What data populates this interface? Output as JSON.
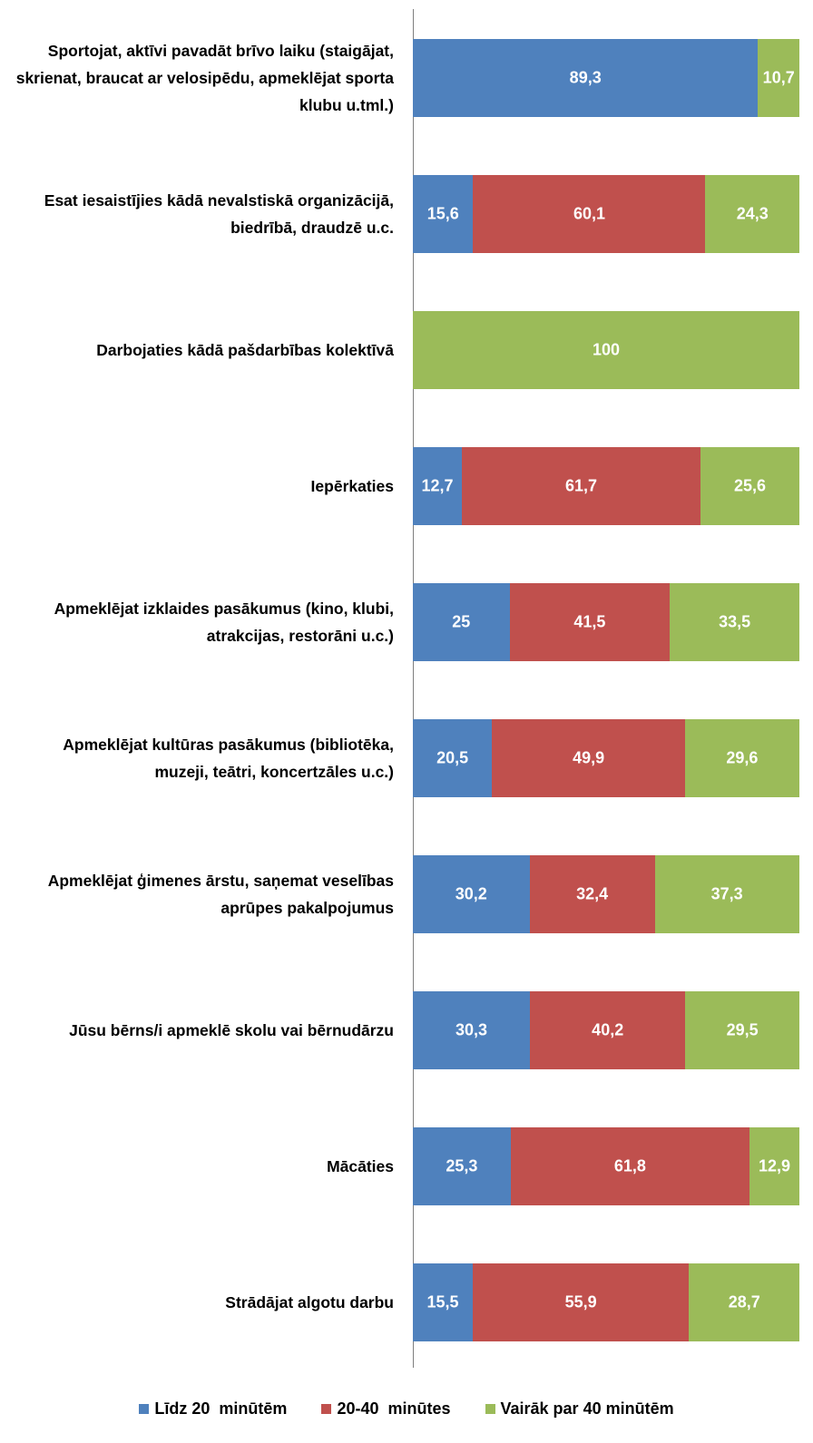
{
  "chart_data": {
    "type": "stacked-bar-horizontal",
    "categories": [
      "Sportojat, aktīvi pavadāt brīvo laiku (staigājat, skrienat, braucat ar velosipēdu, apmeklējat sporta klubu u.tml.)",
      "Esat iesaistījies kādā nevalstiskā organizācijā, biedrībā, draudzē u.c.",
      "Darbojaties kādā pašdarbības kolektīvā",
      "Iepērkaties",
      "Apmeklējat izklaides pasākumus (kino, klubi, atrakcijas, restorāni u.c.)",
      "Apmeklējat kultūras pasākumus (bibliotēka, muzeji, teātri, koncertzāles u.c.)",
      "Apmeklējat ģimenes ārstu, saņemat veselības aprūpes pakalpojumus",
      "Jūsu bērns/i apmeklē skolu vai bērnudārzu",
      "Mācāties",
      "Strādājat algotu darbu"
    ],
    "series": [
      {
        "name": "Līdz 20  minūtēm",
        "color": "#4f81bd",
        "values": [
          89.3,
          15.6,
          0,
          12.7,
          25,
          20.5,
          30.2,
          30.3,
          25.3,
          15.5
        ],
        "value_labels": [
          "89,3",
          "15,6",
          null,
          "12,7",
          "25",
          "20,5",
          "30,2",
          "30,3",
          "25,3",
          "15,5"
        ]
      },
      {
        "name": "20-40  minūtes",
        "color": "#c0504d",
        "values": [
          0,
          60.1,
          0,
          61.7,
          41.5,
          49.9,
          32.4,
          40.2,
          61.8,
          55.9
        ],
        "value_labels": [
          null,
          "60,1",
          null,
          "61,7",
          "41,5",
          "49,9",
          "32,4",
          "40,2",
          "61,8",
          "55,9"
        ]
      },
      {
        "name": "Vairāk par 40 minūtēm",
        "color": "#9bbb59",
        "values": [
          10.7,
          24.3,
          100,
          25.6,
          33.5,
          29.6,
          37.3,
          29.5,
          12.9,
          28.7
        ],
        "value_labels": [
          "10,7",
          "24,3",
          "100",
          "25,6",
          "33,5",
          "29,6",
          "37,3",
          "29,5",
          "12,9",
          "28,7"
        ]
      }
    ],
    "xlim": [
      0,
      100
    ],
    "legend": "bottom"
  }
}
